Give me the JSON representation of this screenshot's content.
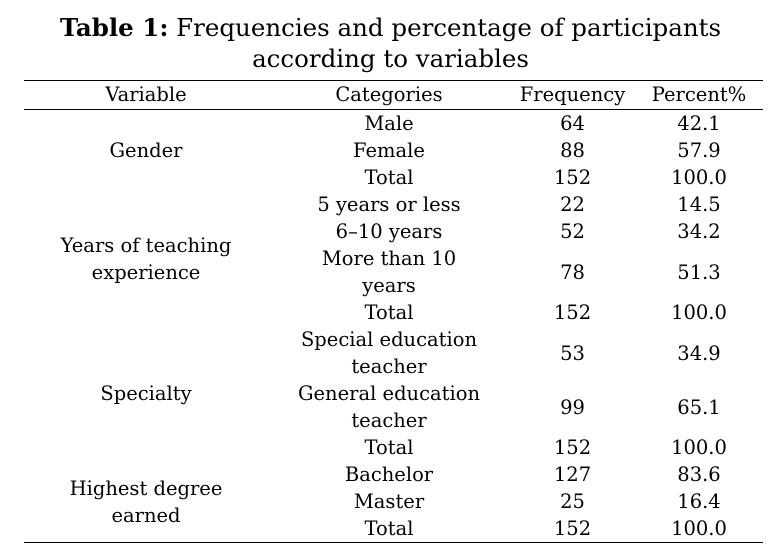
{
  "caption": {
    "label": "Table 1:",
    "text_line1": " Frequencies and percentage of participants",
    "text_line2": "according to variables"
  },
  "table": {
    "headers": [
      "Variable",
      "Categories",
      "Frequency",
      "Percent%"
    ],
    "groups": [
      {
        "variable_line1": "Gender",
        "variable_line2": "",
        "rows": [
          {
            "category_line1": "Male",
            "category_line2": "",
            "frequency": "64",
            "percent": "42.1"
          },
          {
            "category_line1": "Female",
            "category_line2": "",
            "frequency": "88",
            "percent": "57.9"
          },
          {
            "category_line1": "Total",
            "category_line2": "",
            "frequency": "152",
            "percent": "100.0"
          }
        ]
      },
      {
        "variable_line1": "Years of teaching",
        "variable_line2": "experience",
        "rows": [
          {
            "category_line1": "5 years or less",
            "category_line2": "",
            "frequency": "22",
            "percent": "14.5"
          },
          {
            "category_line1": "6–10 years",
            "category_line2": "",
            "frequency": "52",
            "percent": "34.2"
          },
          {
            "category_line1": "More than 10",
            "category_line2": "years",
            "frequency": "78",
            "percent": "51.3"
          },
          {
            "category_line1": "Total",
            "category_line2": "",
            "frequency": "152",
            "percent": "100.0"
          }
        ]
      },
      {
        "variable_line1": "Specialty",
        "variable_line2": "",
        "rows": [
          {
            "category_line1": "Special education",
            "category_line2": "teacher",
            "frequency": "53",
            "percent": "34.9"
          },
          {
            "category_line1": "General education",
            "category_line2": "teacher",
            "frequency": "99",
            "percent": "65.1"
          },
          {
            "category_line1": "Total",
            "category_line2": "",
            "frequency": "152",
            "percent": "100.0"
          }
        ]
      },
      {
        "variable_line1": "Highest degree",
        "variable_line2": "earned",
        "rows": [
          {
            "category_line1": "Bachelor",
            "category_line2": "",
            "frequency": "127",
            "percent": "83.6"
          },
          {
            "category_line1": "Master",
            "category_line2": "",
            "frequency": "25",
            "percent": "16.4"
          },
          {
            "category_line1": "Total",
            "category_line2": "",
            "frequency": "152",
            "percent": "100.0"
          }
        ]
      }
    ]
  }
}
